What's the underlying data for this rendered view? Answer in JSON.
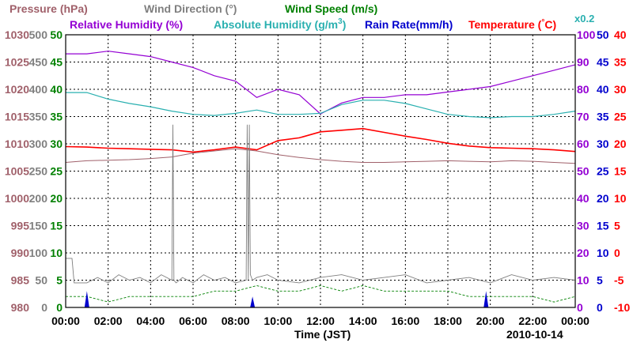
{
  "chart_data": {
    "type": "line",
    "date": "2010-10-14",
    "xlabel": "Time (JST)",
    "x_ticks": [
      "00:00",
      "02:00",
      "04:00",
      "06:00",
      "08:00",
      "10:00",
      "12:00",
      "14:00",
      "16:00",
      "18:00",
      "20:00",
      "22:00",
      "00:00"
    ],
    "xlim_hours": [
      0,
      24
    ],
    "axes": {
      "pressure": {
        "color": "#a0606a",
        "ticks": [
          "1030",
          "1025",
          "1020",
          "1015",
          "1010",
          "1005",
          "1000",
          "995",
          "990",
          "985",
          "980"
        ],
        "ylim": [
          980,
          1030
        ]
      },
      "wind_direction": {
        "color": "#7f7f7f",
        "ticks": [
          "500",
          "450",
          "400",
          "350",
          "300",
          "250",
          "200",
          "150",
          "100",
          "50",
          "0"
        ],
        "ylim": [
          0,
          500
        ]
      },
      "wind_speed": {
        "color": "#008000",
        "ticks": [
          "50",
          "45",
          "40",
          "35",
          "30",
          "25",
          "20",
          "15",
          "10",
          "5",
          "0"
        ],
        "ylim": [
          0,
          50
        ]
      },
      "humidity": {
        "color": "#9400d3",
        "ticks": [
          "100",
          "90",
          "80",
          "70",
          "60",
          "50",
          "40",
          "30",
          "20",
          "10",
          "0"
        ],
        "ylim": [
          0,
          100
        ]
      },
      "absolute_humidity": {
        "color": "#2ab0b0",
        "scale_note": "x0.2",
        "ylim": [
          0,
          250
        ]
      },
      "rain_rate": {
        "color": "#0000cd",
        "ticks": [
          "50",
          "45",
          "40",
          "35",
          "30",
          "25",
          "20",
          "15",
          "10",
          "5",
          "0"
        ],
        "ylim": [
          0,
          50
        ]
      },
      "temperature": {
        "color": "#ff0000",
        "ticks": [
          "40",
          "35",
          "30",
          "25",
          "20",
          "15",
          "10",
          "5",
          "0",
          "-5",
          "-10"
        ],
        "ylim": [
          -10,
          40
        ]
      }
    },
    "legend": [
      {
        "label": "Pressure (hPa)",
        "color": "#a0606a"
      },
      {
        "label": "Wind Direction (°)",
        "color": "#7f7f7f"
      },
      {
        "label": "Wind Speed (m/s)",
        "color": "#008000"
      },
      {
        "label": "Relative Humidity (%)",
        "color": "#9400d3"
      },
      {
        "label": "Absolute Humidity (g/m",
        "sup": "3",
        "close": ")",
        "color": "#2ab0b0"
      },
      {
        "label": "Rain Rate(mm/h)",
        "color": "#0000cd"
      },
      {
        "label": "Temperature (",
        "deg": "°",
        "unit": "C)",
        "color": "#ff0000"
      }
    ],
    "series": [
      {
        "name": "Pressure",
        "axis": "pressure",
        "x": [
          0,
          1,
          2,
          3,
          4,
          5,
          6,
          7,
          8,
          9,
          10,
          11,
          12,
          13,
          14,
          15,
          16,
          17,
          18,
          19,
          20,
          21,
          22,
          23,
          24
        ],
        "y": [
          1006.6,
          1006.9,
          1007.0,
          1007.1,
          1007.3,
          1007.6,
          1008.3,
          1008.7,
          1009.1,
          1008.7,
          1008.0,
          1007.5,
          1007.1,
          1006.8,
          1006.6,
          1006.6,
          1006.7,
          1006.8,
          1006.9,
          1006.8,
          1006.7,
          1006.9,
          1006.8,
          1006.6,
          1006.4
        ]
      },
      {
        "name": "Temperature",
        "axis": "temperature",
        "x": [
          0,
          1,
          2,
          3,
          4,
          5,
          6,
          7,
          8,
          9,
          10,
          11,
          12,
          13,
          14,
          15,
          16,
          17,
          18,
          19,
          20,
          21,
          22,
          23,
          24
        ],
        "y": [
          19.5,
          19.4,
          19.2,
          19.1,
          19.0,
          18.9,
          18.5,
          18.9,
          19.4,
          18.9,
          20.6,
          21.1,
          22.2,
          22.5,
          22.8,
          22.1,
          21.4,
          20.8,
          20.1,
          19.6,
          19.3,
          19.2,
          19.1,
          18.9,
          18.6
        ]
      },
      {
        "name": "Relative Humidity",
        "axis": "humidity",
        "x": [
          0,
          1,
          2,
          3,
          4,
          5,
          6,
          7,
          8,
          9,
          10,
          11,
          12,
          13,
          14,
          15,
          16,
          17,
          18,
          19,
          20,
          21,
          22,
          23,
          24
        ],
        "y": [
          93,
          93,
          94,
          93,
          92,
          90,
          88,
          85,
          83,
          77,
          80,
          78,
          71,
          75,
          77,
          77,
          78,
          78,
          79,
          80,
          81,
          83,
          85,
          87,
          89
        ]
      },
      {
        "name": "Absolute Humidity",
        "axis": "absolute_humidity",
        "x": [
          0,
          1,
          2,
          3,
          4,
          5,
          6,
          7,
          8,
          9,
          10,
          11,
          12,
          13,
          14,
          15,
          16,
          17,
          18,
          19,
          20,
          21,
          22,
          23,
          24
        ],
        "y": [
          197,
          197,
          191,
          187,
          184,
          180,
          177,
          176,
          178,
          181,
          177,
          177,
          178,
          186,
          190,
          190,
          187,
          182,
          177,
          175,
          174,
          175,
          175,
          177,
          180
        ]
      },
      {
        "name": "Wind Direction",
        "axis": "wind_direction",
        "x": [
          0,
          0.3,
          0.4,
          1.0,
          1.5,
          2.0,
          2.5,
          3.0,
          3.5,
          4.0,
          4.5,
          5.0,
          5.05,
          5.1,
          5.2,
          5.5,
          6.0,
          6.5,
          7.0,
          7.5,
          8.0,
          8.5,
          8.55,
          8.6,
          8.65,
          8.7,
          8.8,
          9.0,
          9.5,
          10.0,
          11.0,
          12.0,
          13.0,
          14.0,
          15.0,
          16.0,
          17.0,
          18.0,
          19.0,
          20.0,
          21.0,
          22.0,
          23.0,
          24.0
        ],
        "y": [
          90,
          90,
          45,
          45,
          55,
          45,
          60,
          50,
          55,
          45,
          60,
          50,
          335,
          50,
          45,
          55,
          45,
          60,
          50,
          55,
          45,
          50,
          335,
          50,
          335,
          60,
          50,
          55,
          60,
          50,
          45,
          55,
          60,
          50,
          55,
          60,
          45,
          50,
          55,
          45,
          60,
          50,
          55,
          50
        ]
      },
      {
        "name": "Wind Speed",
        "axis": "wind_speed",
        "x": [
          0,
          1,
          2,
          3,
          4,
          5,
          6,
          7,
          8,
          9,
          10,
          11,
          12,
          13,
          14,
          15,
          16,
          17,
          18,
          19,
          20,
          21,
          22,
          23,
          24
        ],
        "y": [
          2,
          2,
          1,
          2,
          2,
          2,
          2,
          3,
          3,
          4,
          3,
          3,
          4,
          3,
          4,
          3,
          3,
          3,
          3,
          2,
          2,
          2,
          2,
          1,
          2
        ]
      },
      {
        "name": "Rain Rate",
        "axis": "rain_rate",
        "x": [
          1.0,
          8.8,
          19.8
        ],
        "y": [
          3,
          2,
          3
        ]
      }
    ]
  }
}
